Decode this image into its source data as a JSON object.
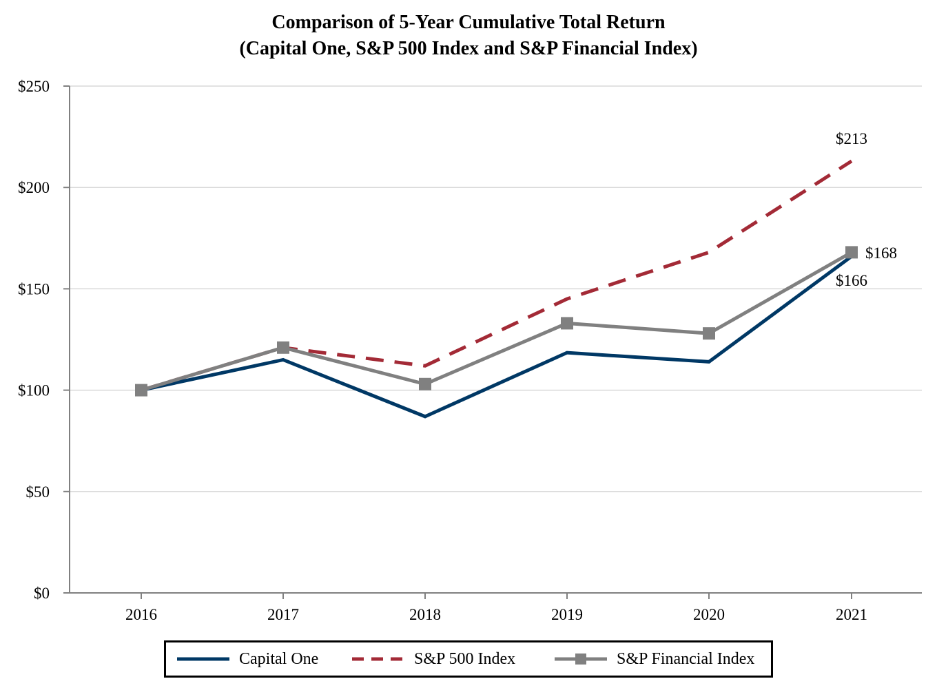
{
  "chart_data": {
    "type": "line",
    "title": "Comparison of 5-Year Cumulative Total Return",
    "subtitle": "(Capital One, S&P 500 Index and S&P Financial Index)",
    "xlabel": "",
    "ylabel": "",
    "categories": [
      "2016",
      "2017",
      "2018",
      "2019",
      "2020",
      "2021"
    ],
    "ylim": [
      0,
      250
    ],
    "yticks": [
      0,
      50,
      100,
      150,
      200,
      250
    ],
    "ytick_labels": [
      "$0",
      "$50",
      "$100",
      "$150",
      "$200",
      "$250"
    ],
    "grid": true,
    "legend_position": "bottom",
    "series": [
      {
        "name": "Capital One",
        "values": [
          100,
          115,
          87,
          118.5,
          114,
          166
        ],
        "color": "#003865",
        "style": "solid",
        "marker": "none",
        "end_label": "$166"
      },
      {
        "name": "S&P 500 Index",
        "values": [
          100,
          121,
          112,
          145,
          168,
          213
        ],
        "color": "#A32A36",
        "style": "dashed",
        "marker": "none",
        "end_label": "$213"
      },
      {
        "name": "S&P Financial Index",
        "values": [
          100,
          121,
          103,
          133,
          128,
          168
        ],
        "color": "#808080",
        "style": "solid",
        "marker": "square",
        "end_label": "$168"
      }
    ]
  }
}
